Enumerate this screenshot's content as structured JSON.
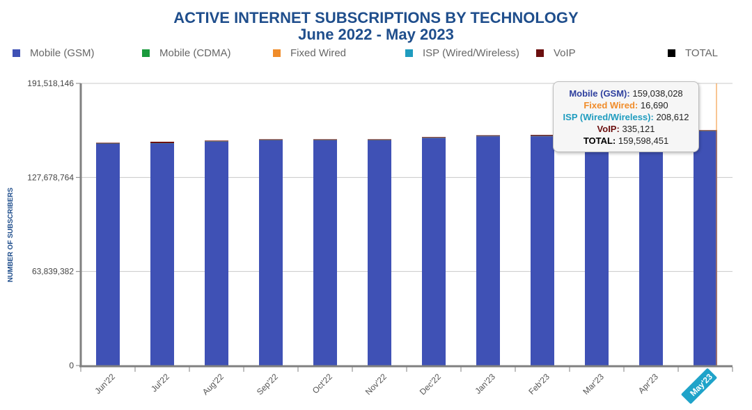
{
  "chart_data": {
    "type": "bar",
    "stacked": true,
    "title": "ACTIVE INTERNET SUBSCRIPTIONS BY TECHNOLOGY",
    "subtitle": "June 2022 - May 2023",
    "ylabel": "NUMBER OF SUBSCRIBERS",
    "xlabel": "",
    "ylim": [
      0,
      191518146
    ],
    "yticks": [
      0,
      63839382,
      127678764,
      191518146
    ],
    "ytick_labels": [
      "0",
      "63,839,382",
      "127,678,764",
      "191,518,146"
    ],
    "grid": true,
    "legend_position": "top",
    "categories": [
      "Jun'22",
      "Jul'22",
      "Aug'22",
      "Sep'22",
      "Oct'22",
      "Nov'22",
      "Dec'22",
      "Jan'23",
      "Feb'23",
      "Mar'23",
      "Apr'23",
      "May'23"
    ],
    "highlighted_category": "May'23",
    "series": [
      {
        "name": "Mobile (GSM)",
        "color": "#3f51b5",
        "values": [
          150500000,
          150700000,
          152000000,
          152900000,
          152900000,
          152900000,
          154400000,
          155600000,
          155600000,
          157200000,
          158100000,
          159038028
        ]
      },
      {
        "name": "Mobile (CDMA)",
        "color": "#1a9a3c",
        "values": [
          0,
          0,
          0,
          0,
          0,
          0,
          0,
          0,
          0,
          0,
          0,
          0
        ]
      },
      {
        "name": "Fixed Wired",
        "color": "#f08c2a",
        "values": [
          17000,
          17000,
          17000,
          17000,
          17000,
          17000,
          17000,
          17000,
          17000,
          17000,
          16800,
          16690
        ]
      },
      {
        "name": "ISP (Wired/Wireless)",
        "color": "#1f9cbf",
        "values": [
          200000,
          200000,
          200000,
          200000,
          200000,
          200000,
          205000,
          205000,
          205000,
          205000,
          207000,
          208612
        ]
      },
      {
        "name": "VoIP",
        "color": "#6b0f0f",
        "values": [
          500000,
          1000000,
          400000,
          350000,
          350000,
          350000,
          350000,
          340000,
          700000,
          340000,
          340000,
          335121
        ]
      },
      {
        "name": "TOTAL",
        "color": "#000000",
        "values": [
          151217000,
          151917000,
          152617000,
          153467000,
          153467000,
          153467000,
          154972000,
          156162000,
          156522000,
          157762000,
          158663800,
          159598451
        ]
      }
    ]
  },
  "tooltip": {
    "rows": [
      {
        "label": "Mobile (GSM):",
        "value": "159,038,028",
        "color": "#2e3f9e"
      },
      {
        "label": "Fixed Wired:",
        "value": "16,690",
        "color": "#f08c2a"
      },
      {
        "label": "ISP (Wired/Wireless):",
        "value": "208,612",
        "color": "#1f9cbf"
      },
      {
        "label": "VoIP:",
        "value": "335,121",
        "color": "#6b0f0f"
      },
      {
        "label": "TOTAL:",
        "value": "159,598,451",
        "color": "#000000"
      }
    ]
  },
  "colors": {
    "title": "#1f4e8c",
    "axis_label": "#1f4e8c",
    "highlight_badge": "#1fa3c9",
    "crosshair": "#f08c2a"
  }
}
